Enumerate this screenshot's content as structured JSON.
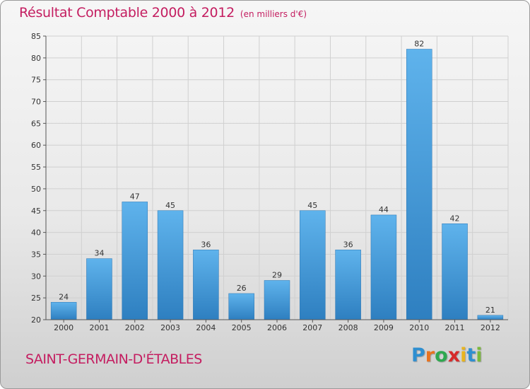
{
  "header": {
    "title": "Résultat Comptable 2000 à 2012",
    "subtitle": "(en milliers d'€)"
  },
  "commune": "SAINT-GERMAIN-D'ÉTABLES",
  "brand": {
    "letters": [
      "P",
      "r",
      "o",
      "x",
      "i",
      "t",
      "i"
    ],
    "colors": [
      "#2f8fd0",
      "#e8731f",
      "#2fa84f",
      "#d62a2a",
      "#e8b41f",
      "#2f8fd0",
      "#7ab93b"
    ]
  },
  "colors": {
    "title": "#c41d60",
    "bar_top": "#5fb3ec",
    "bar_bottom": "#2e7fc0"
  },
  "chart_data": {
    "type": "bar",
    "categories": [
      "2000",
      "2001",
      "2002",
      "2003",
      "2004",
      "2005",
      "2006",
      "2007",
      "2008",
      "2009",
      "2010",
      "2011",
      "2012"
    ],
    "values": [
      24,
      34,
      47,
      45,
      36,
      26,
      29,
      45,
      36,
      44,
      82,
      42,
      21
    ],
    "ylim": [
      20,
      85
    ],
    "yticks": [
      20,
      25,
      30,
      35,
      40,
      45,
      50,
      55,
      60,
      65,
      70,
      75,
      80,
      85
    ],
    "grid": true,
    "data_labels": true,
    "legend": "none"
  }
}
